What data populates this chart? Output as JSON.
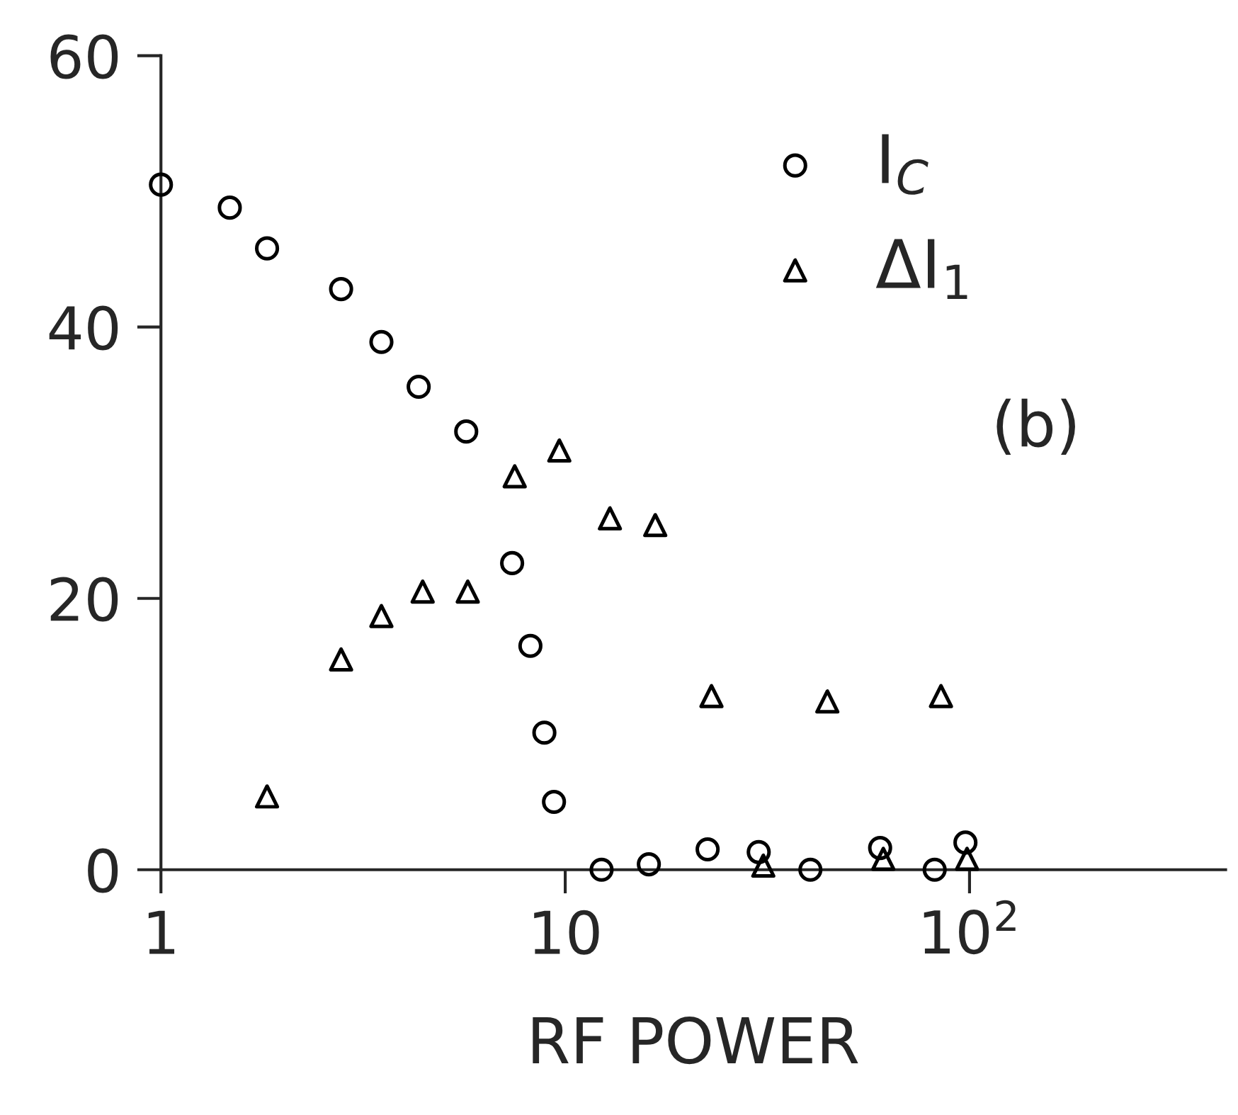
{
  "chart_data": {
    "type": "scatter",
    "xlabel": "RF POWER",
    "log": "x",
    "xlim": [
      1,
      430
    ],
    "xticks": [
      1,
      10,
      {
        "value": 100,
        "label": "10$^{2}$"
      }
    ],
    "ylim": [
      0,
      60
    ],
    "yticks": [
      0,
      20,
      40,
      60
    ],
    "grid": false,
    "legend": "top right",
    "annotations": [
      "(b)"
    ],
    "series": [
      {
        "name": "I$_{C}$",
        "color": "#000000",
        "marker": "circle",
        "x": [
          1,
          1.48,
          1.83,
          2.79,
          3.51,
          4.34,
          5.69,
          7.39,
          8.2,
          8.88,
          9.38,
          12.3,
          16.1,
          22.5,
          30.1,
          40.4,
          60.1,
          82,
          97.7
        ],
        "values": [
          50.5,
          48.8,
          45.8,
          42.8,
          38.9,
          35.6,
          32.3,
          22.6,
          16.5,
          10.1,
          5.0,
          0,
          0.4,
          1.5,
          1.3,
          0,
          1.6,
          0,
          2
        ]
      },
      {
        "name": "ΔI$_{1}$",
        "color": "#000000",
        "marker": "triangle",
        "x": [
          1.83,
          2.79,
          3.51,
          4.44,
          5.74,
          7.5,
          9.67,
          12.9,
          16.7,
          23.0,
          30.9,
          44.5,
          61.2,
          85,
          98.6
        ],
        "values": [
          5.4,
          15.5,
          18.7,
          20.5,
          20.5,
          29,
          30.9,
          25.9,
          25.4,
          12.8,
          0.3,
          12.4,
          0.8,
          12.8,
          0.8
        ]
      }
    ]
  }
}
